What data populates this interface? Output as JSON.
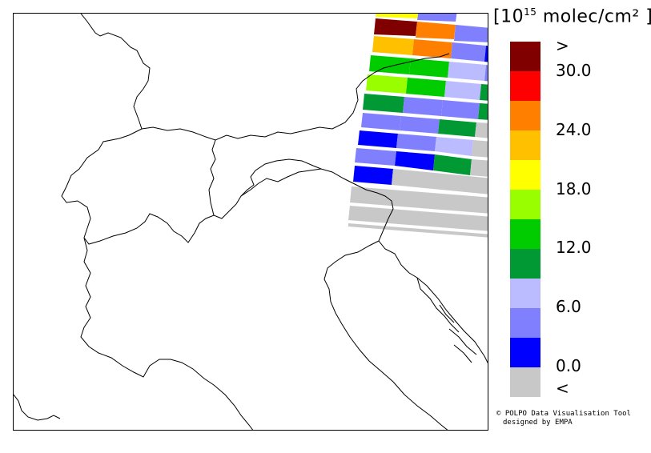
{
  "legend": {
    "unit_power": "15",
    "unit_text": "molec/cm²",
    "unit_open": "[10",
    "unit_close": "]",
    "labels": [
      ">",
      "30.0",
      "24.0",
      "18.0",
      "12.0",
      "6.0",
      "0.0",
      "<"
    ],
    "colors": [
      "#800000",
      "#ff0000",
      "#ff8000",
      "#ffc000",
      "#ffff00",
      "#99ff00",
      "#00cc00",
      "#009933",
      "#bbbbff",
      "#8080ff",
      "#0000ff",
      "#c8c8c8"
    ]
  },
  "credit": {
    "line1": "© POLPO Data Visualisation Tool",
    "line2": "designed by EMPA"
  },
  "colors": {
    "no_data": "#c8c8c8",
    "border": "#000000"
  }
}
